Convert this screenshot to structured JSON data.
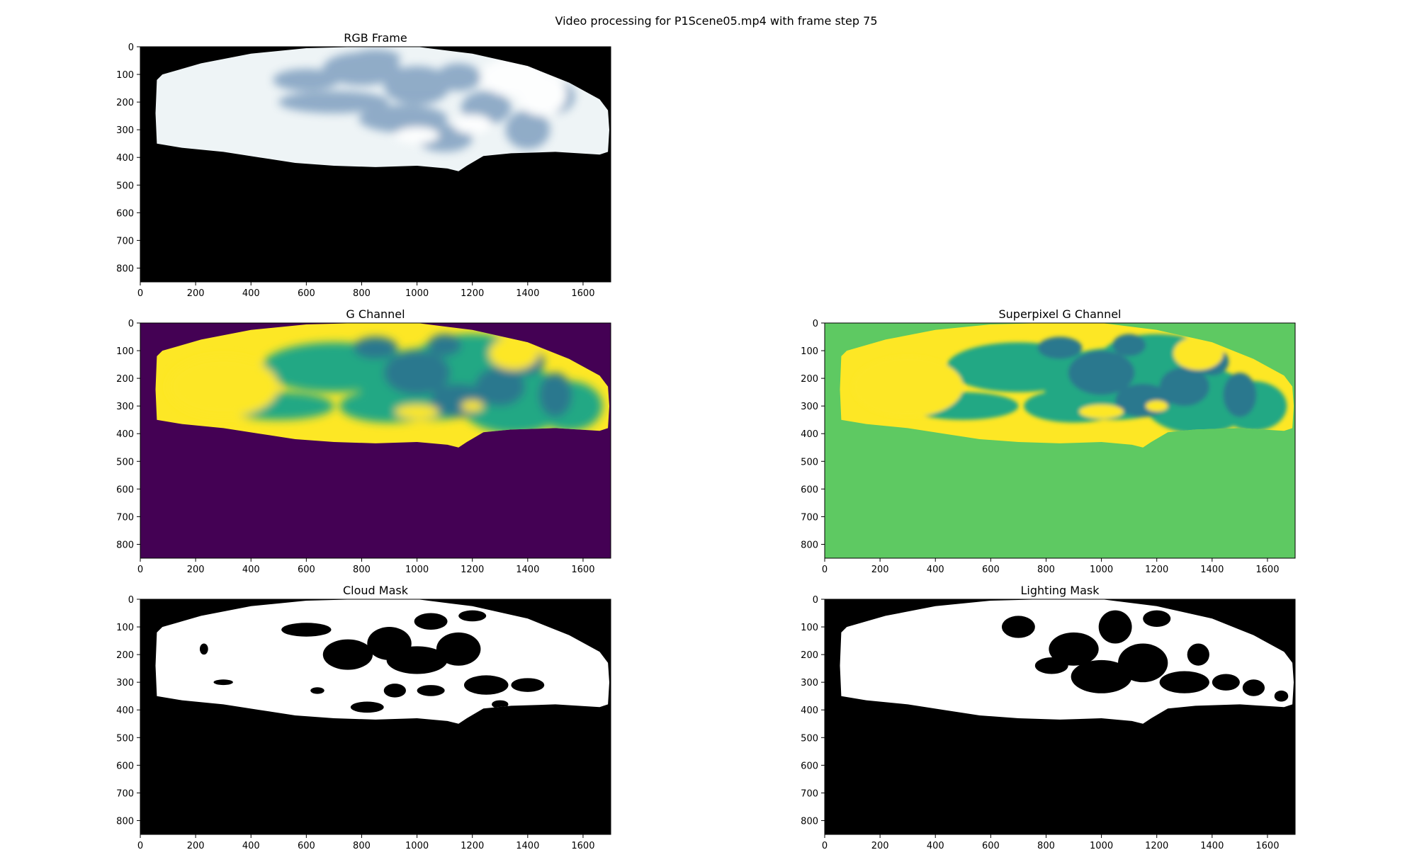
{
  "figure": {
    "suptitle": "Video processing for P1Scene05.mp4 with frame step 75"
  },
  "palette": {
    "black": "#000000",
    "white": "#ffffff",
    "viridis_dark": "#440154",
    "viridis_mid": "#2a788e",
    "viridis_teal": "#22a884",
    "viridis_green": "#5ec962",
    "viridis_yellow": "#fde725",
    "sky_light": "#eef4f6",
    "sky_blue": "#7f9fbf"
  },
  "chart_data": [
    {
      "type": "image",
      "title": "RGB Frame",
      "image_content": "sky-frame-rgb",
      "xticks": [
        0,
        200,
        400,
        600,
        800,
        1000,
        1200,
        1400,
        1600
      ],
      "yticks": [
        0,
        100,
        200,
        300,
        400,
        500,
        600,
        700,
        800
      ],
      "xlim": [
        0,
        1700
      ],
      "ylim": [
        850,
        0
      ]
    },
    {
      "type": "image",
      "title": "G Channel",
      "image_content": "green-channel-viridis",
      "xticks": [
        0,
        200,
        400,
        600,
        800,
        1000,
        1200,
        1400,
        1600
      ],
      "yticks": [
        0,
        100,
        200,
        300,
        400,
        500,
        600,
        700,
        800
      ],
      "xlim": [
        0,
        1700
      ],
      "ylim": [
        850,
        0
      ]
    },
    {
      "type": "image",
      "title": "Superpixel G Channel",
      "image_content": "superpixel-green-viridis",
      "xticks": [
        0,
        200,
        400,
        600,
        800,
        1000,
        1200,
        1400,
        1600
      ],
      "yticks": [
        0,
        100,
        200,
        300,
        400,
        500,
        600,
        700,
        800
      ],
      "xlim": [
        0,
        1700
      ],
      "ylim": [
        850,
        0
      ]
    },
    {
      "type": "image",
      "title": "Cloud Mask",
      "image_content": "binary-cloud-mask",
      "xticks": [
        0,
        200,
        400,
        600,
        800,
        1000,
        1200,
        1400,
        1600
      ],
      "yticks": [
        0,
        100,
        200,
        300,
        400,
        500,
        600,
        700,
        800
      ],
      "xlim": [
        0,
        1700
      ],
      "ylim": [
        850,
        0
      ]
    },
    {
      "type": "image",
      "title": "Lighting Mask",
      "image_content": "binary-lighting-mask",
      "xticks": [
        0,
        200,
        400,
        600,
        800,
        1000,
        1200,
        1400,
        1600
      ],
      "yticks": [
        0,
        100,
        200,
        300,
        400,
        500,
        600,
        700,
        800
      ],
      "xlim": [
        0,
        1700
      ],
      "ylim": [
        850,
        0
      ]
    }
  ]
}
